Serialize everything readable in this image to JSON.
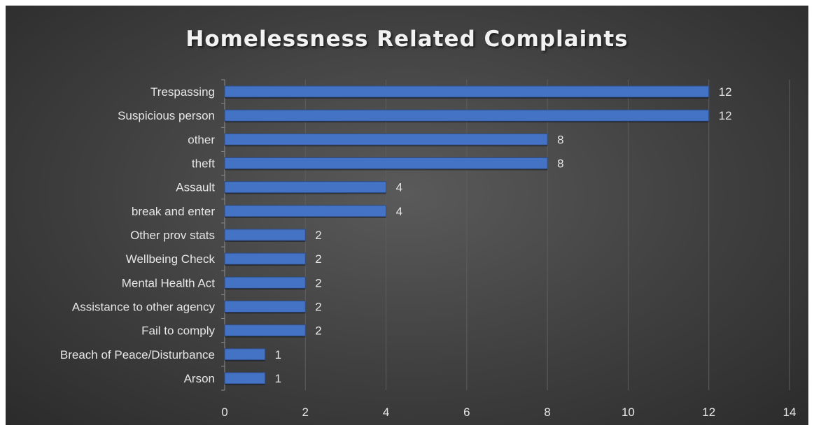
{
  "chart_data": {
    "type": "bar",
    "orientation": "horizontal",
    "title": "Homelessness Related Complaints",
    "categories": [
      "Trespassing",
      "Suspicious person",
      "other",
      "theft",
      "Assault",
      "break and enter",
      "Other prov stats",
      "Wellbeing Check",
      "Mental Health Act",
      "Assistance to other agency",
      "Fail to comply",
      "Breach of Peace/Disturbance",
      "Arson"
    ],
    "values": [
      12,
      12,
      8,
      8,
      4,
      4,
      2,
      2,
      2,
      2,
      2,
      1,
      1
    ],
    "xlim": [
      0,
      14
    ],
    "xticks": [
      0,
      2,
      4,
      6,
      8,
      10,
      12,
      14
    ],
    "grid": true,
    "data_labels": true,
    "bar_color": "#4472c4",
    "background_color": "#404040",
    "text_color": "#e6e6e6"
  }
}
